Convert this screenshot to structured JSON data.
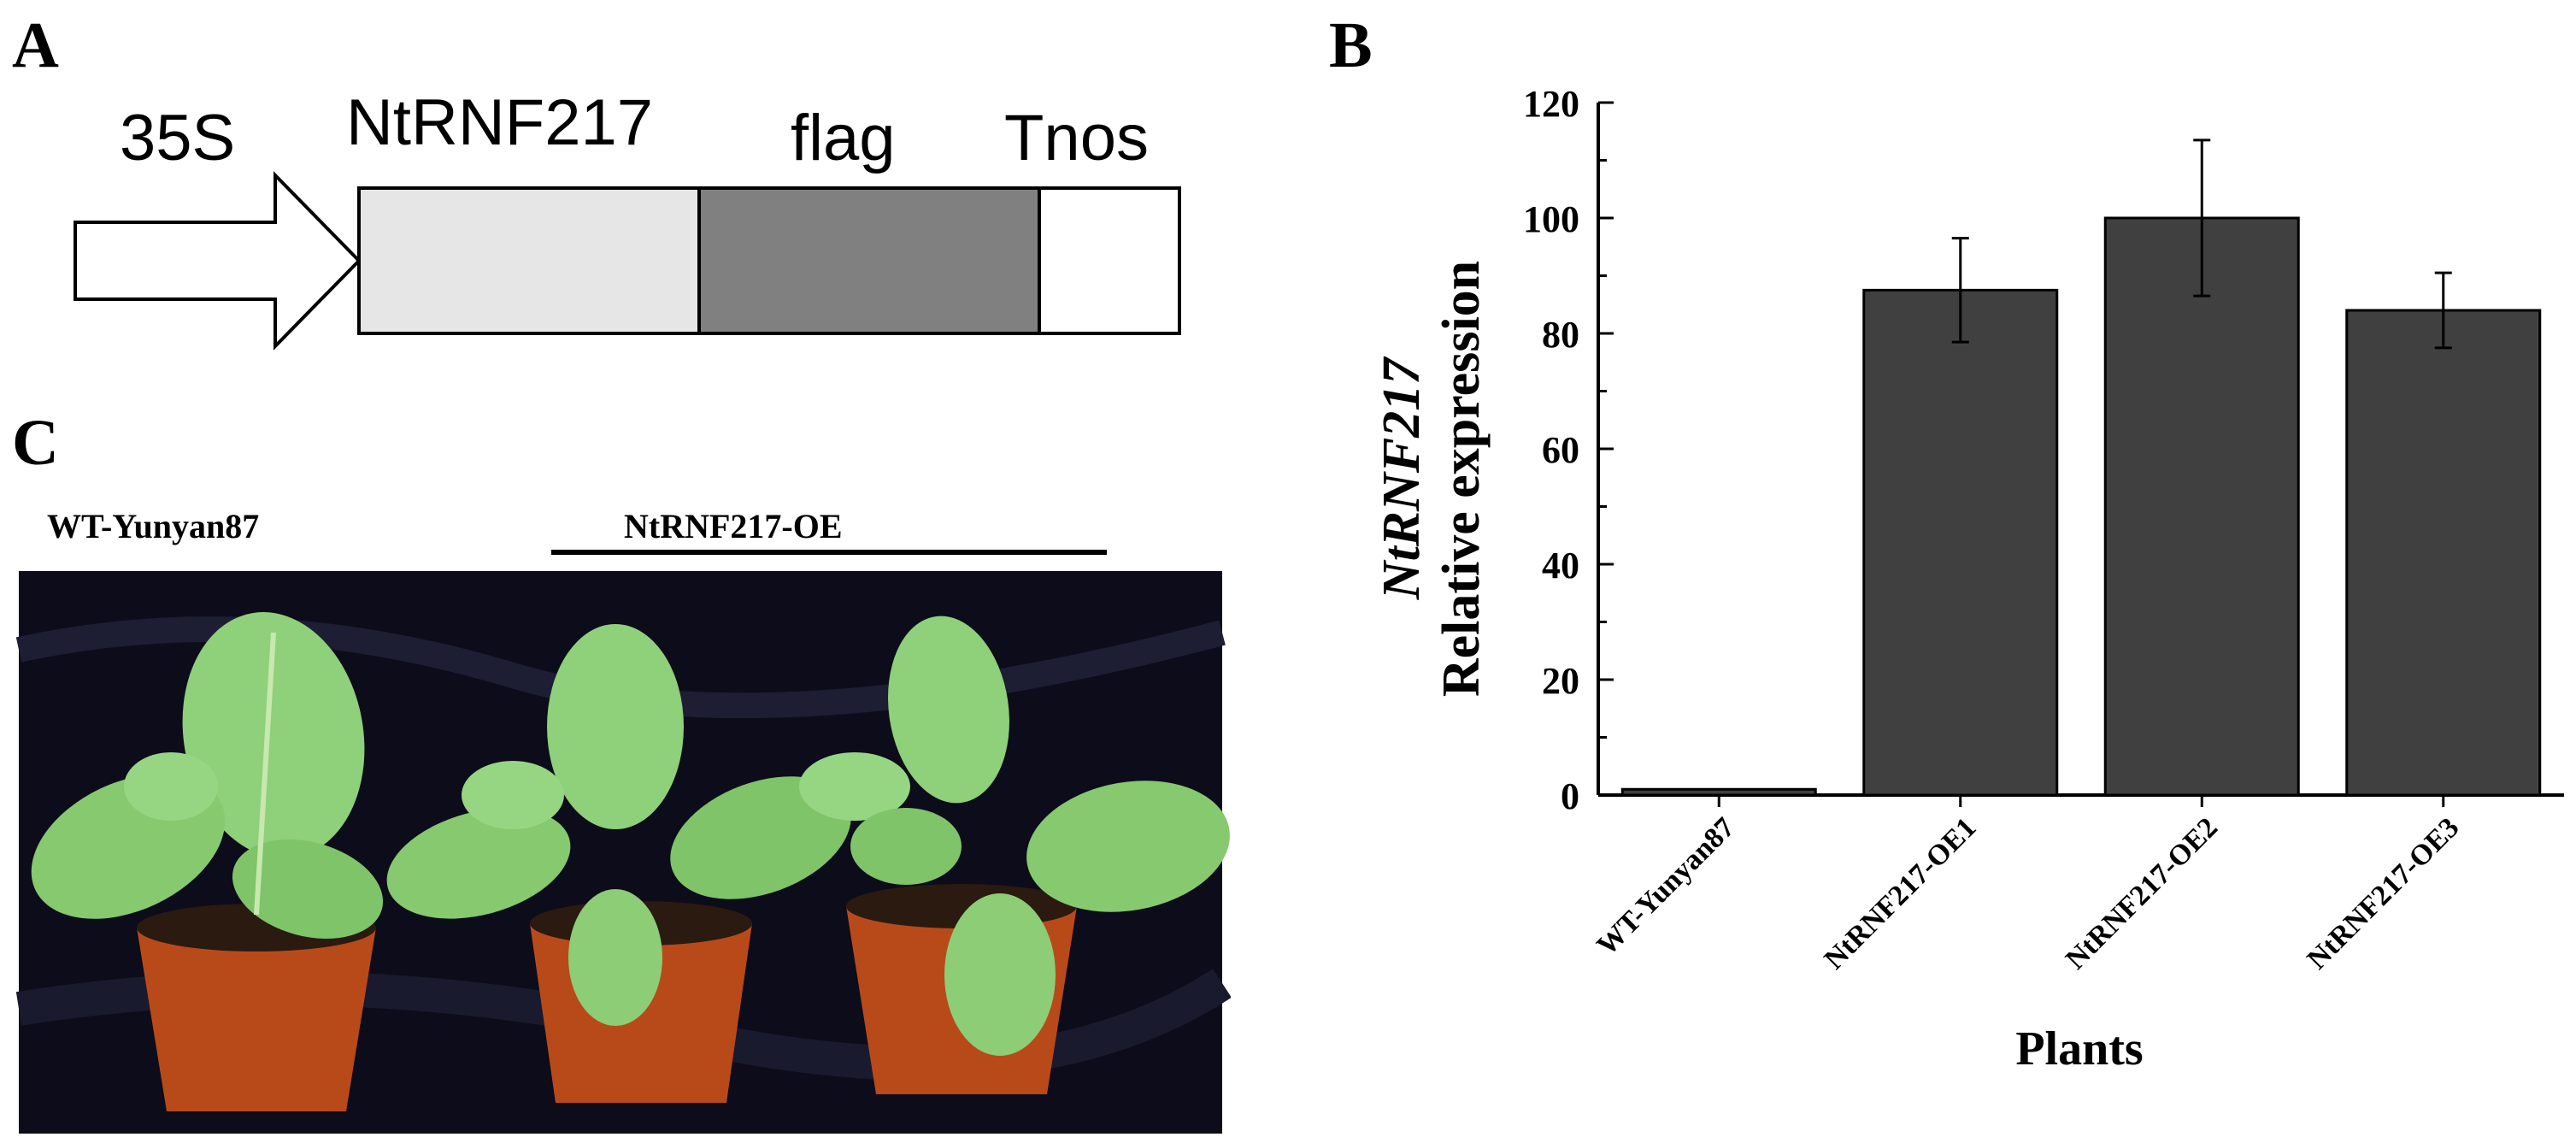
{
  "panels": {
    "a_label": "A",
    "b_label": "B",
    "c_label": "C"
  },
  "construct": {
    "promoter": "35S",
    "gene": "NtRNF217",
    "tag": "flag",
    "terminator": "Tnos",
    "colors": {
      "gene": "#e6e6e6",
      "tag": "#808080",
      "terminator": "#ffffff"
    }
  },
  "photo": {
    "wt_label": "WT-Yunyan87",
    "oe_label": "NtRNF217-OE"
  },
  "chart_data": {
    "type": "bar",
    "categories": [
      "WT-Yunyan87",
      "NtRNF217-OE1",
      "NtRNF217-OE2",
      "NtRNF217-OE3"
    ],
    "values": [
      1,
      87.5,
      100,
      84
    ],
    "errors": [
      0,
      9,
      13.5,
      6.5
    ],
    "xlabel": "Plants",
    "ylabel_gene": "NtRNF217",
    "ylabel": "Relative expression",
    "ylim": [
      0,
      120
    ],
    "yticks": [
      0,
      20,
      40,
      60,
      80,
      100,
      120
    ],
    "bar_color": "#404040",
    "grid": false
  }
}
